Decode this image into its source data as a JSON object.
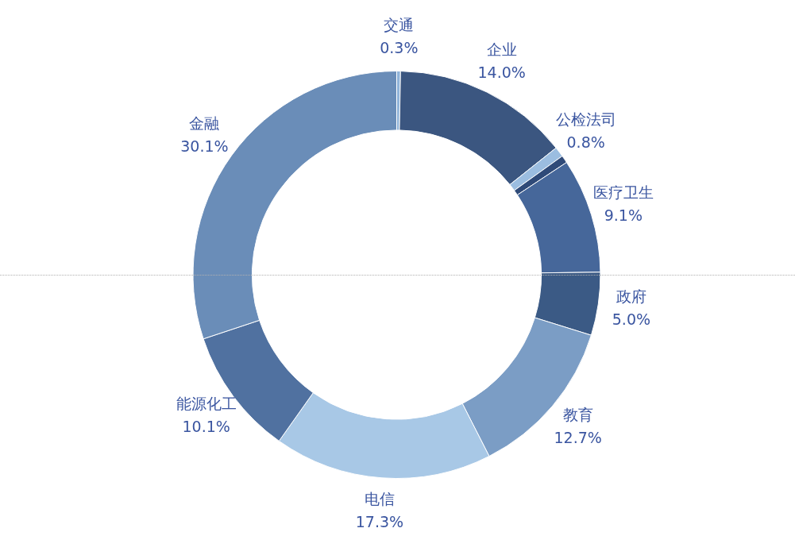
{
  "chart_data": {
    "type": "donut",
    "categories": [
      "交通",
      "企业",
      "公检法司",
      null,
      "医疗卫生",
      "政府",
      "教育",
      "电信",
      "能源化工",
      "金融"
    ],
    "values": [
      0.3,
      14.0,
      0.8,
      0.6,
      9.1,
      5.0,
      12.7,
      17.3,
      10.1,
      30.1
    ],
    "value_labels": [
      "0.3%",
      "14.0%",
      "0.8%",
      null,
      "9.1%",
      "5.0%",
      "12.7%",
      "17.3%",
      "10.1%",
      "30.1%"
    ],
    "colors": [
      "#8fb3d9",
      "#3b5680",
      "#9bbde0",
      "#2f4a78",
      "#46679a",
      "#3b5a85",
      "#7b9dc5",
      "#a8c8e6",
      "#5071a0",
      "#6a8db8"
    ],
    "legend": false
  }
}
